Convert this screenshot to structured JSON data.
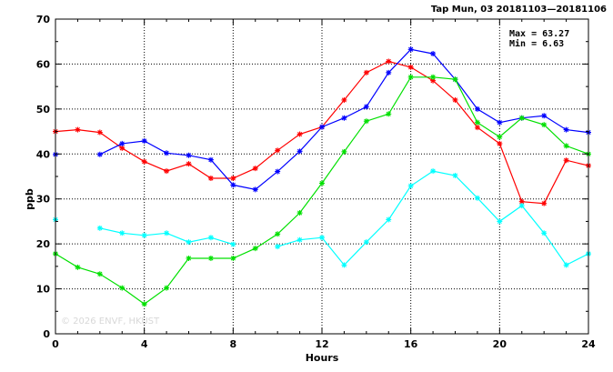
{
  "chart_data": {
    "type": "line",
    "title": "Tap Mun, 03 20181103—20181106",
    "xlabel": "Hours",
    "ylabel": "ppb",
    "xlim": [
      0,
      24
    ],
    "ylim": [
      0,
      70
    ],
    "xticks": [
      0,
      4,
      8,
      12,
      16,
      20,
      24
    ],
    "yticks": [
      0,
      10,
      20,
      30,
      40,
      50,
      60,
      70
    ],
    "grid": true,
    "max_label": "Max = 63.27",
    "min_label": "Min =  6.63",
    "watermark": "© 2026  ENVF, HKUST",
    "x": [
      0,
      1,
      2,
      3,
      4,
      5,
      6,
      7,
      8,
      9,
      10,
      11,
      12,
      13,
      14,
      15,
      16,
      17,
      18,
      19,
      20,
      21,
      22,
      23,
      24
    ],
    "series": [
      {
        "color": "#ff0000",
        "values": [
          45.0,
          45.4,
          44.8,
          41.3,
          38.3,
          36.2,
          37.8,
          34.6,
          34.6,
          36.8,
          40.8,
          44.4,
          46.0,
          52.0,
          58.1,
          60.6,
          59.3,
          56.3,
          52.0,
          45.9,
          42.3,
          29.4,
          29.0,
          38.6,
          37.4
        ]
      },
      {
        "color": "#0000ff",
        "values": [
          39.9,
          null,
          39.9,
          42.3,
          42.9,
          40.2,
          39.7,
          38.7,
          33.1,
          32.1,
          36.1,
          40.6,
          46.0,
          48.0,
          50.5,
          58.1,
          63.27,
          62.3,
          56.6,
          50.0,
          47.0,
          48.0,
          48.5,
          45.4,
          44.8
        ]
      },
      {
        "color": "#00e000",
        "values": [
          17.8,
          14.8,
          13.3,
          10.2,
          6.63,
          10.2,
          16.8,
          16.8,
          16.8,
          19.0,
          22.2,
          26.9,
          33.5,
          40.5,
          47.3,
          48.9,
          57.1,
          57.1,
          56.6,
          47.0,
          43.8,
          48.0,
          46.5,
          41.8,
          40.0
        ]
      },
      {
        "color": "#00ffff",
        "values": [
          25.4,
          null,
          23.5,
          22.4,
          21.9,
          22.4,
          20.4,
          21.4,
          19.9,
          null,
          19.4,
          20.9,
          21.4,
          15.3,
          20.4,
          25.4,
          32.9,
          36.2,
          35.2,
          30.2,
          25.0,
          28.5,
          22.4,
          15.3,
          17.8
        ]
      }
    ]
  }
}
